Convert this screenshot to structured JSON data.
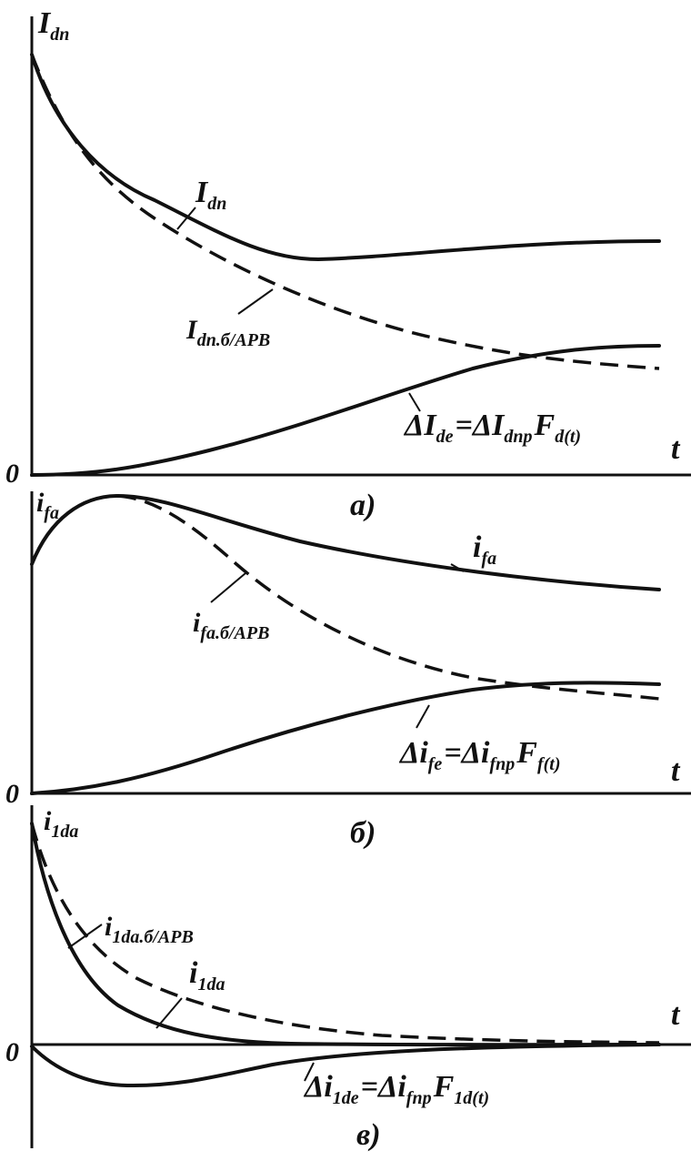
{
  "panels": [
    {
      "axis_label": [
        {
          "text": "I",
          "sub": "dn"
        }
      ],
      "curve_labels": [
        [
          {
            "text": "I",
            "sub": "dn"
          }
        ],
        [
          {
            "text": "I",
            "sub": "dn.б/АРВ"
          }
        ]
      ],
      "formula": [
        {
          "text": "ΔI",
          "sub": "de"
        },
        {
          "text": "=ΔI",
          "sub": "dnp"
        },
        {
          "text": "F",
          "sub": "d(t)"
        }
      ],
      "origin": "0",
      "t_label": "t",
      "caption": "а)"
    },
    {
      "axis_label": [
        {
          "text": "i",
          "sub": "fa"
        }
      ],
      "curve_labels": [
        [
          {
            "text": "i",
            "sub": "fa"
          }
        ],
        [
          {
            "text": "i",
            "sub": "fa.б/АРВ"
          }
        ]
      ],
      "formula": [
        {
          "text": "Δi",
          "sub": "fe"
        },
        {
          "text": "=Δi",
          "sub": "fnp"
        },
        {
          "text": "F",
          "sub": "f(t)"
        }
      ],
      "origin": "0",
      "t_label": "t",
      "caption": "б)"
    },
    {
      "axis_label": [
        {
          "text": "i",
          "sub": "1da"
        }
      ],
      "curve_labels": [
        [
          {
            "text": "i",
            "sub": "1da.б/АРВ"
          }
        ],
        [
          {
            "text": "i",
            "sub": "1da"
          }
        ]
      ],
      "formula": [
        {
          "text": "Δi",
          "sub": "1de"
        },
        {
          "text": "=Δi",
          "sub": "fnp"
        },
        {
          "text": "F",
          "sub": "1d(t)"
        }
      ],
      "origin": "0",
      "t_label": "t",
      "caption": "в)"
    }
  ]
}
